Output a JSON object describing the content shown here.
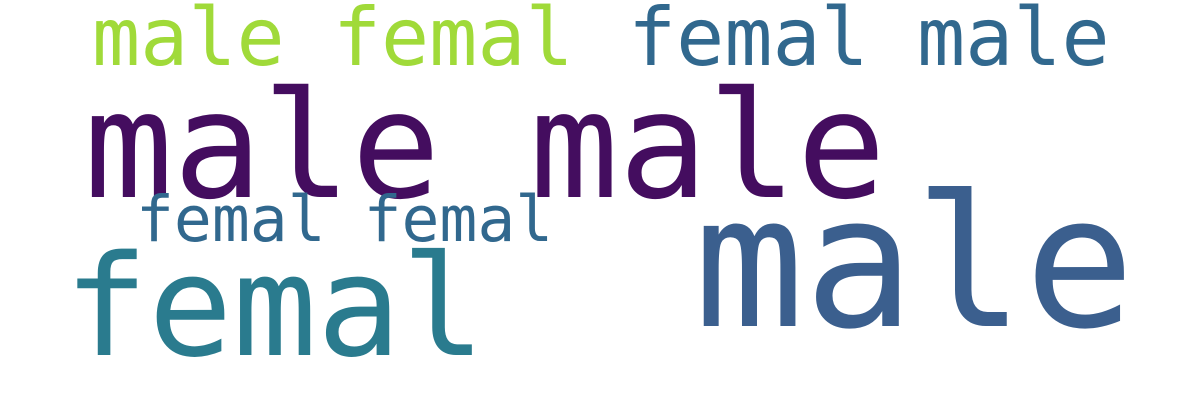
{
  "words": [
    {
      "text": "male femal",
      "color": "#a0da39"
    },
    {
      "text": "femal male",
      "color": "#31688e"
    },
    {
      "text": "male male",
      "color": "#440d5f"
    },
    {
      "text": "femal femal",
      "color": "#31688e"
    },
    {
      "text": "male",
      "color": "#3b5f8e"
    },
    {
      "text": "femal",
      "color": "#2a7b8e"
    }
  ]
}
